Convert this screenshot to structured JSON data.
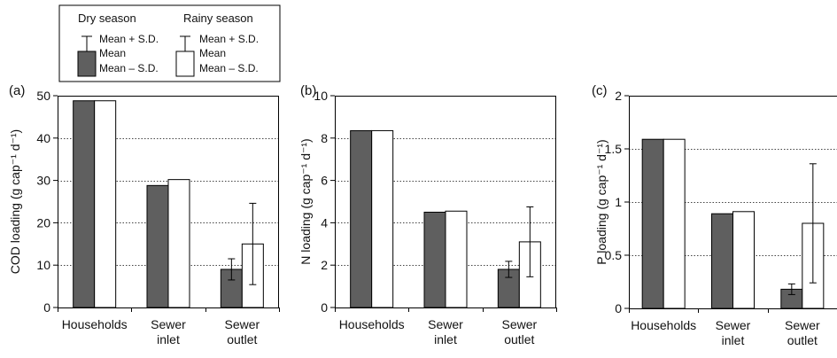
{
  "legend": {
    "dry_label": "Dry season",
    "rainy_label": "Rainy season",
    "upper_label": "Mean + S.D.",
    "mean_label": "Mean",
    "lower_label": "Mean – S.D.",
    "dry_color": "#5f5f5f",
    "rainy_color": "#ffffff"
  },
  "chart_data": [
    {
      "type": "bar",
      "panel": "(a)",
      "ylabel": "COD loading (g cap⁻¹ d⁻¹)",
      "ylim": [
        0,
        50
      ],
      "yticks": [
        0,
        10,
        20,
        30,
        40,
        50
      ],
      "ytick_labels": [
        "0",
        "10",
        "20",
        "30",
        "40",
        "50"
      ],
      "categories": [
        [
          "Households"
        ],
        [
          "Sewer",
          "inlet"
        ],
        [
          "Sewer",
          "outlet"
        ]
      ],
      "series": [
        {
          "name": "Dry season",
          "values": [
            48.8,
            28.8,
            9.0
          ],
          "sd": [
            null,
            null,
            2.5
          ]
        },
        {
          "name": "Rainy season",
          "values": [
            48.8,
            30.2,
            15.0
          ],
          "sd": [
            null,
            null,
            9.6
          ]
        }
      ],
      "grid": "horizontal dotted"
    },
    {
      "type": "bar",
      "panel": "(b)",
      "ylabel": "N loading (g cap⁻¹ d⁻¹)",
      "ylim": [
        0,
        10
      ],
      "yticks": [
        0,
        2,
        4,
        6,
        8,
        10
      ],
      "ytick_labels": [
        "0",
        "2",
        "4",
        "6",
        "8",
        "10"
      ],
      "categories": [
        [
          "Households"
        ],
        [
          "Sewer",
          "inlet"
        ],
        [
          "Sewer",
          "outlet"
        ]
      ],
      "series": [
        {
          "name": "Dry season",
          "values": [
            8.35,
            4.5,
            1.8
          ],
          "sd": [
            null,
            null,
            0.38
          ]
        },
        {
          "name": "Rainy season",
          "values": [
            8.35,
            4.55,
            3.1
          ],
          "sd": [
            null,
            null,
            1.65
          ]
        }
      ],
      "grid": "horizontal dotted"
    },
    {
      "type": "bar",
      "panel": "(c)",
      "ylabel": "P loading (g cap⁻¹ d⁻¹)",
      "ylim": [
        0,
        2
      ],
      "yticks": [
        0,
        0.5,
        1,
        1.5,
        2
      ],
      "ytick_labels": [
        "0",
        "0.5",
        "1",
        "1.5",
        "2"
      ],
      "categories": [
        [
          "Households"
        ],
        [
          "Sewer",
          "inlet"
        ],
        [
          "Sewer",
          "outlet"
        ]
      ],
      "series": [
        {
          "name": "Dry season",
          "values": [
            1.59,
            0.89,
            0.18
          ],
          "sd": [
            null,
            null,
            0.05
          ]
        },
        {
          "name": "Rainy season",
          "values": [
            1.59,
            0.91,
            0.8
          ],
          "sd": [
            null,
            null,
            0.56
          ]
        }
      ],
      "grid": "horizontal dotted"
    }
  ]
}
